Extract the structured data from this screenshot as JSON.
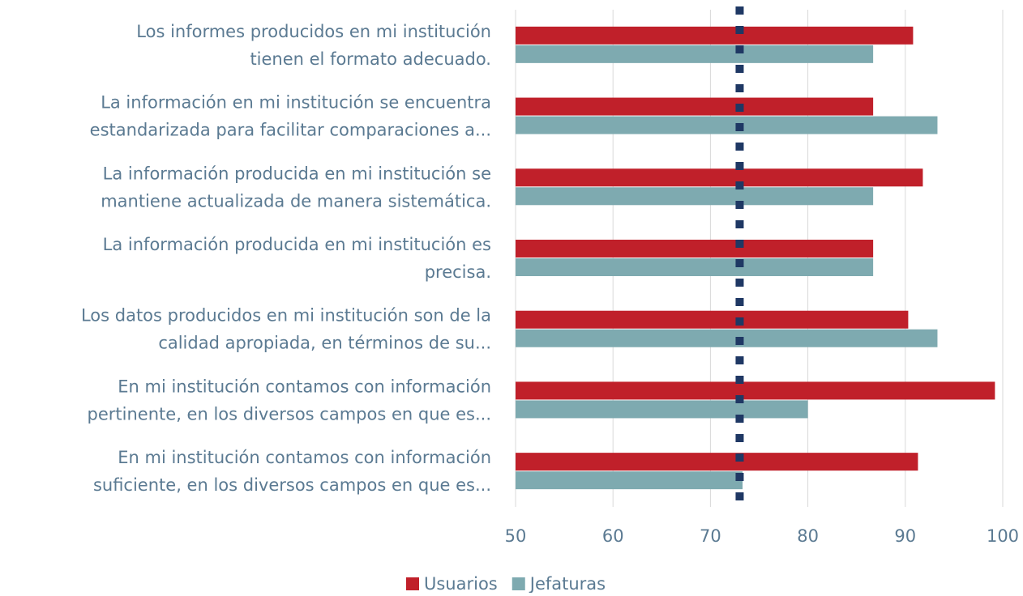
{
  "chart_data": {
    "type": "bar",
    "orientation": "horizontal",
    "categories": [
      [
        "Los informes producidos en mi institución",
        "tienen el formato adecuado."
      ],
      [
        "La información en mi institución se encuentra",
        "estandarizada para facilitar comparaciones a..."
      ],
      [
        "La información producida en mi institución se",
        "mantiene actualizada de manera sistemática."
      ],
      [
        "La información producida en mi institución es",
        "precisa."
      ],
      [
        "Los datos producidos en mi institución son de la",
        "calidad apropiada, en términos de su..."
      ],
      [
        "En mi institución contamos con información",
        "pertinente, en los diversos campos en que es..."
      ],
      [
        "En mi institución contamos con información",
        "suficiente, en los diversos campos en que es..."
      ]
    ],
    "series": [
      {
        "name": "Usuarios",
        "color": "#c0202a",
        "values": [
          90.8,
          86.7,
          91.8,
          86.7,
          90.3,
          99.2,
          91.3
        ]
      },
      {
        "name": "Jefaturas",
        "color": "#7eaab0",
        "values": [
          86.7,
          93.3,
          86.7,
          86.7,
          93.3,
          80,
          73.3
        ]
      }
    ],
    "reference_line": {
      "value": 73,
      "color": "#1f3864"
    },
    "xlim": [
      50,
      100
    ],
    "xticks": [
      50,
      60,
      70,
      80,
      90,
      100
    ],
    "grid": true,
    "legend": "bottom"
  }
}
